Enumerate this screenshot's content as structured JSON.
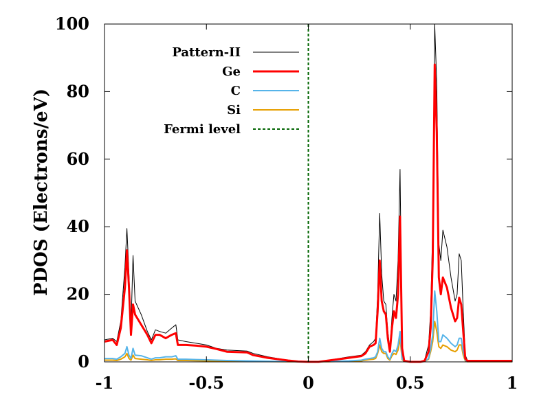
{
  "chart_data": {
    "type": "line",
    "xlabel": "",
    "ylabel": "PDOS (Electrons/eV)",
    "xlim": [
      -1,
      1
    ],
    "ylim": [
      0,
      100
    ],
    "x_ticks": [
      -1,
      -0.5,
      0,
      0.5,
      1
    ],
    "x_tick_labels": [
      "-1",
      "-0.5",
      "0",
      "0.5",
      "1"
    ],
    "y_ticks": [
      0,
      20,
      40,
      60,
      80,
      100
    ],
    "y_tick_labels": [
      "0",
      "20",
      "40",
      "60",
      "80",
      "100"
    ],
    "grid": false,
    "legend_position": "top-left",
    "fermi_level": 0,
    "series": [
      {
        "name": "Pattern-II",
        "color": "#000000",
        "points": [
          [
            -1,
            6.5
          ],
          [
            -0.96,
            7
          ],
          [
            -0.94,
            6
          ],
          [
            -0.92,
            12
          ],
          [
            -0.9,
            28
          ],
          [
            -0.89,
            39.5
          ],
          [
            -0.88,
            26
          ],
          [
            -0.87,
            10
          ],
          [
            -0.86,
            31.5
          ],
          [
            -0.85,
            18
          ],
          [
            -0.82,
            14
          ],
          [
            -0.79,
            9
          ],
          [
            -0.77,
            6.5
          ],
          [
            -0.75,
            9.5
          ],
          [
            -0.73,
            9
          ],
          [
            -0.7,
            8.5
          ],
          [
            -0.67,
            10
          ],
          [
            -0.65,
            11
          ],
          [
            -0.64,
            6.5
          ],
          [
            -0.6,
            6
          ],
          [
            -0.55,
            5.5
          ],
          [
            -0.5,
            5
          ],
          [
            -0.45,
            4
          ],
          [
            -0.4,
            3.5
          ],
          [
            -0.3,
            3.2
          ],
          [
            -0.27,
            2.5
          ],
          [
            -0.2,
            1.5
          ],
          [
            -0.1,
            0.5
          ],
          [
            -0.05,
            0.2
          ],
          [
            0,
            0
          ],
          [
            0.05,
            0
          ],
          [
            0.1,
            0.5
          ],
          [
            0.2,
            1.5
          ],
          [
            0.26,
            2
          ],
          [
            0.28,
            3
          ],
          [
            0.3,
            5
          ],
          [
            0.32,
            6
          ],
          [
            0.33,
            7
          ],
          [
            0.34,
            20
          ],
          [
            0.35,
            44
          ],
          [
            0.36,
            26
          ],
          [
            0.37,
            18
          ],
          [
            0.38,
            17
          ],
          [
            0.39,
            9
          ],
          [
            0.4,
            4
          ],
          [
            0.41,
            13
          ],
          [
            0.42,
            20
          ],
          [
            0.43,
            18
          ],
          [
            0.44,
            30
          ],
          [
            0.45,
            57
          ],
          [
            0.46,
            5
          ],
          [
            0.47,
            0.5
          ],
          [
            0.5,
            0
          ],
          [
            0.55,
            0
          ],
          [
            0.57,
            0.5
          ],
          [
            0.59,
            5
          ],
          [
            0.6,
            15
          ],
          [
            0.61,
            40
          ],
          [
            0.62,
            100
          ],
          [
            0.63,
            82
          ],
          [
            0.64,
            35
          ],
          [
            0.65,
            30
          ],
          [
            0.66,
            39
          ],
          [
            0.68,
            34
          ],
          [
            0.7,
            25
          ],
          [
            0.72,
            18
          ],
          [
            0.73,
            20
          ],
          [
            0.74,
            32
          ],
          [
            0.75,
            30
          ],
          [
            0.76,
            15
          ],
          [
            0.77,
            2
          ],
          [
            0.78,
            0.5
          ],
          [
            0.85,
            0.5
          ],
          [
            1,
            0.5
          ]
        ]
      },
      {
        "name": "Ge",
        "color": "#ff0000",
        "points": [
          [
            -1,
            6
          ],
          [
            -0.96,
            6.5
          ],
          [
            -0.94,
            5
          ],
          [
            -0.92,
            10
          ],
          [
            -0.9,
            22
          ],
          [
            -0.89,
            33
          ],
          [
            -0.88,
            22
          ],
          [
            -0.87,
            8
          ],
          [
            -0.86,
            17
          ],
          [
            -0.85,
            14
          ],
          [
            -0.82,
            11
          ],
          [
            -0.79,
            8
          ],
          [
            -0.77,
            5.5
          ],
          [
            -0.75,
            8
          ],
          [
            -0.73,
            8
          ],
          [
            -0.7,
            7
          ],
          [
            -0.67,
            8
          ],
          [
            -0.65,
            8.5
          ],
          [
            -0.64,
            5
          ],
          [
            -0.6,
            5
          ],
          [
            -0.55,
            4.8
          ],
          [
            -0.5,
            4.5
          ],
          [
            -0.45,
            3.8
          ],
          [
            -0.4,
            3
          ],
          [
            -0.3,
            2.8
          ],
          [
            -0.27,
            2
          ],
          [
            -0.2,
            1.2
          ],
          [
            -0.1,
            0.4
          ],
          [
            -0.05,
            0.1
          ],
          [
            0,
            0
          ],
          [
            0.05,
            0
          ],
          [
            0.1,
            0.4
          ],
          [
            0.2,
            1.2
          ],
          [
            0.26,
            1.7
          ],
          [
            0.28,
            2.5
          ],
          [
            0.3,
            4.5
          ],
          [
            0.32,
            5
          ],
          [
            0.33,
            5.5
          ],
          [
            0.34,
            15
          ],
          [
            0.35,
            30
          ],
          [
            0.36,
            18
          ],
          [
            0.37,
            15
          ],
          [
            0.38,
            14
          ],
          [
            0.39,
            7
          ],
          [
            0.4,
            3
          ],
          [
            0.41,
            10
          ],
          [
            0.42,
            15
          ],
          [
            0.43,
            13
          ],
          [
            0.44,
            20
          ],
          [
            0.45,
            43
          ],
          [
            0.46,
            4
          ],
          [
            0.47,
            0.3
          ],
          [
            0.5,
            0
          ],
          [
            0.55,
            0
          ],
          [
            0.57,
            0.3
          ],
          [
            0.59,
            3
          ],
          [
            0.6,
            10
          ],
          [
            0.61,
            30
          ],
          [
            0.62,
            88
          ],
          [
            0.63,
            68
          ],
          [
            0.64,
            25
          ],
          [
            0.65,
            20
          ],
          [
            0.66,
            25
          ],
          [
            0.68,
            22
          ],
          [
            0.7,
            16
          ],
          [
            0.72,
            12
          ],
          [
            0.73,
            13
          ],
          [
            0.74,
            19
          ],
          [
            0.75,
            17
          ],
          [
            0.76,
            9
          ],
          [
            0.77,
            1
          ],
          [
            0.78,
            0.3
          ],
          [
            0.85,
            0.3
          ],
          [
            1,
            0.3
          ]
        ]
      },
      {
        "name": "C",
        "color": "#56b4e9",
        "points": [
          [
            -1,
            1
          ],
          [
            -0.96,
            1
          ],
          [
            -0.94,
            0.8
          ],
          [
            -0.92,
            1.5
          ],
          [
            -0.9,
            2.5
          ],
          [
            -0.89,
            4.5
          ],
          [
            -0.88,
            2
          ],
          [
            -0.87,
            1
          ],
          [
            -0.86,
            4
          ],
          [
            -0.85,
            2
          ],
          [
            -0.82,
            1.8
          ],
          [
            -0.79,
            1.2
          ],
          [
            -0.77,
            0.8
          ],
          [
            -0.75,
            1.2
          ],
          [
            -0.73,
            1.2
          ],
          [
            -0.7,
            1.5
          ],
          [
            -0.67,
            1.5
          ],
          [
            -0.65,
            1.8
          ],
          [
            -0.64,
            0.8
          ],
          [
            -0.6,
            0.8
          ],
          [
            -0.55,
            0.7
          ],
          [
            -0.5,
            0.6
          ],
          [
            -0.45,
            0.5
          ],
          [
            -0.4,
            0.4
          ],
          [
            -0.3,
            0.3
          ],
          [
            -0.2,
            0.2
          ],
          [
            -0.1,
            0.1
          ],
          [
            0,
            0
          ],
          [
            0.1,
            0.1
          ],
          [
            0.2,
            0.3
          ],
          [
            0.26,
            0.5
          ],
          [
            0.28,
            0.8
          ],
          [
            0.3,
            1
          ],
          [
            0.32,
            1.2
          ],
          [
            0.33,
            1.5
          ],
          [
            0.34,
            3
          ],
          [
            0.35,
            7
          ],
          [
            0.36,
            4
          ],
          [
            0.37,
            3
          ],
          [
            0.38,
            3
          ],
          [
            0.39,
            1.5
          ],
          [
            0.4,
            0.8
          ],
          [
            0.41,
            2.5
          ],
          [
            0.42,
            3.5
          ],
          [
            0.43,
            3
          ],
          [
            0.44,
            5
          ],
          [
            0.45,
            9
          ],
          [
            0.46,
            1
          ],
          [
            0.47,
            0.1
          ],
          [
            0.5,
            0
          ],
          [
            0.55,
            0
          ],
          [
            0.57,
            0.1
          ],
          [
            0.59,
            1
          ],
          [
            0.6,
            4
          ],
          [
            0.61,
            8
          ],
          [
            0.62,
            21
          ],
          [
            0.63,
            15
          ],
          [
            0.64,
            6
          ],
          [
            0.65,
            6
          ],
          [
            0.66,
            8
          ],
          [
            0.68,
            7
          ],
          [
            0.7,
            5.5
          ],
          [
            0.72,
            4.5
          ],
          [
            0.73,
            5
          ],
          [
            0.74,
            7
          ],
          [
            0.75,
            7
          ],
          [
            0.76,
            3
          ],
          [
            0.77,
            0.5
          ],
          [
            0.78,
            0.1
          ],
          [
            0.85,
            0.1
          ],
          [
            1,
            0.1
          ]
        ]
      },
      {
        "name": "Si",
        "color": "#e69f00",
        "points": [
          [
            -1,
            0.5
          ],
          [
            -0.96,
            0.5
          ],
          [
            -0.94,
            0.4
          ],
          [
            -0.92,
            0.8
          ],
          [
            -0.9,
            1.5
          ],
          [
            -0.89,
            2.5
          ],
          [
            -0.88,
            1
          ],
          [
            -0.87,
            0.5
          ],
          [
            -0.86,
            2
          ],
          [
            -0.85,
            1
          ],
          [
            -0.82,
            0.8
          ],
          [
            -0.79,
            0.6
          ],
          [
            -0.77,
            0.4
          ],
          [
            -0.75,
            0.6
          ],
          [
            -0.73,
            0.6
          ],
          [
            -0.7,
            0.8
          ],
          [
            -0.67,
            0.8
          ],
          [
            -0.65,
            0.9
          ],
          [
            -0.64,
            0.4
          ],
          [
            -0.6,
            0.4
          ],
          [
            -0.55,
            0.35
          ],
          [
            -0.5,
            0.3
          ],
          [
            -0.45,
            0.25
          ],
          [
            -0.4,
            0.2
          ],
          [
            -0.3,
            0.15
          ],
          [
            -0.2,
            0.1
          ],
          [
            -0.1,
            0.05
          ],
          [
            0,
            0
          ],
          [
            0.1,
            0.05
          ],
          [
            0.2,
            0.2
          ],
          [
            0.26,
            0.3
          ],
          [
            0.28,
            0.5
          ],
          [
            0.3,
            0.7
          ],
          [
            0.32,
            0.8
          ],
          [
            0.33,
            1
          ],
          [
            0.34,
            2.5
          ],
          [
            0.35,
            5
          ],
          [
            0.36,
            3
          ],
          [
            0.37,
            2.5
          ],
          [
            0.38,
            2.5
          ],
          [
            0.39,
            1
          ],
          [
            0.4,
            0.5
          ],
          [
            0.41,
            1.8
          ],
          [
            0.42,
            2.5
          ],
          [
            0.43,
            2.2
          ],
          [
            0.44,
            3.5
          ],
          [
            0.45,
            7
          ],
          [
            0.46,
            0.7
          ],
          [
            0.47,
            0.1
          ],
          [
            0.5,
            0
          ],
          [
            0.55,
            0
          ],
          [
            0.57,
            0.1
          ],
          [
            0.59,
            0.8
          ],
          [
            0.6,
            3
          ],
          [
            0.61,
            6
          ],
          [
            0.62,
            12
          ],
          [
            0.63,
            9
          ],
          [
            0.64,
            4.5
          ],
          [
            0.65,
            4
          ],
          [
            0.66,
            5
          ],
          [
            0.68,
            4.5
          ],
          [
            0.7,
            3.5
          ],
          [
            0.72,
            3
          ],
          [
            0.73,
            3.5
          ],
          [
            0.74,
            5
          ],
          [
            0.75,
            5
          ],
          [
            0.76,
            2
          ],
          [
            0.77,
            0.3
          ],
          [
            0.78,
            0.05
          ],
          [
            0.85,
            0.05
          ],
          [
            1,
            0.05
          ]
        ]
      }
    ],
    "fermi_series": {
      "name": "Fermi level",
      "color": "#006400"
    }
  }
}
